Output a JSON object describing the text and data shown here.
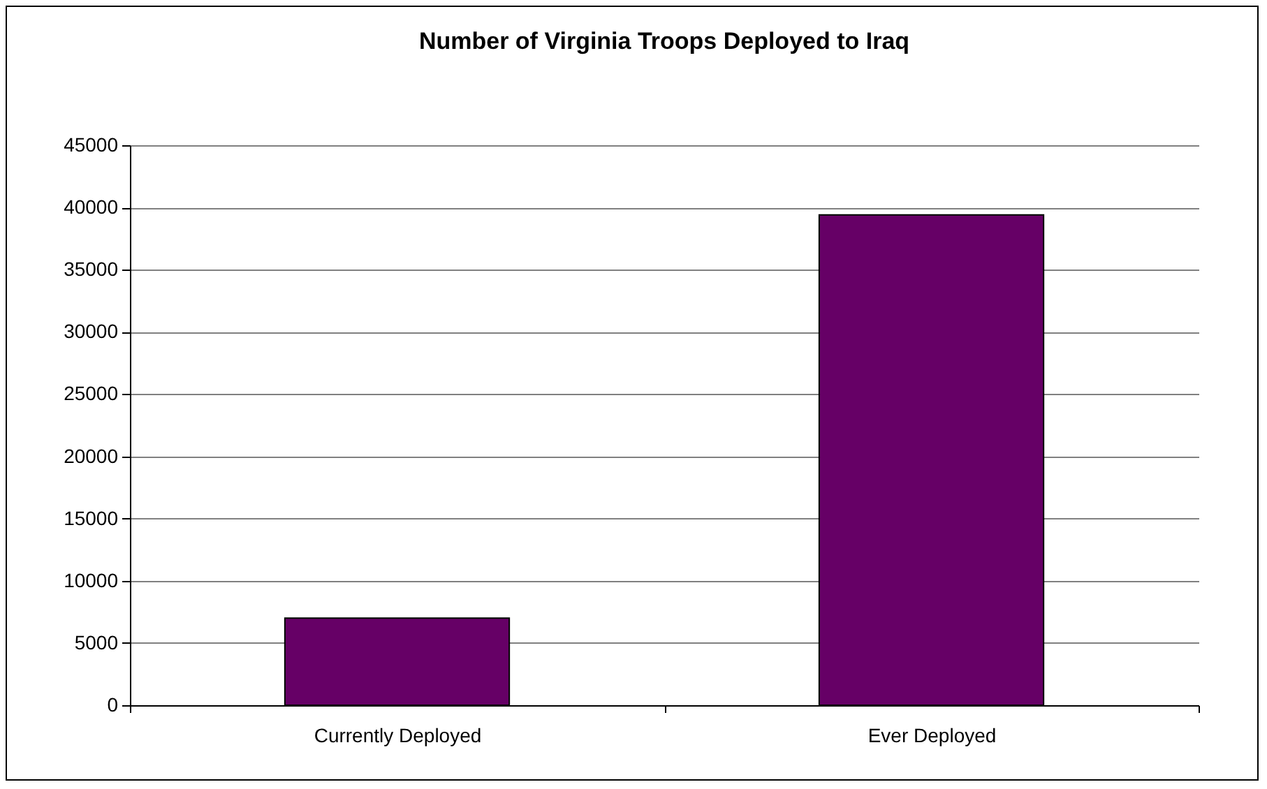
{
  "chart_data": {
    "type": "bar",
    "title": "Number of Virginia Troops Deployed to Iraq",
    "categories": [
      "Currently Deployed",
      "Ever Deployed"
    ],
    "values": [
      7000,
      39400
    ],
    "color": "#660066",
    "ylim": [
      0,
      45000
    ],
    "yticks": [
      0,
      5000,
      10000,
      15000,
      20000,
      25000,
      30000,
      35000,
      40000,
      45000
    ],
    "grid": "y"
  }
}
